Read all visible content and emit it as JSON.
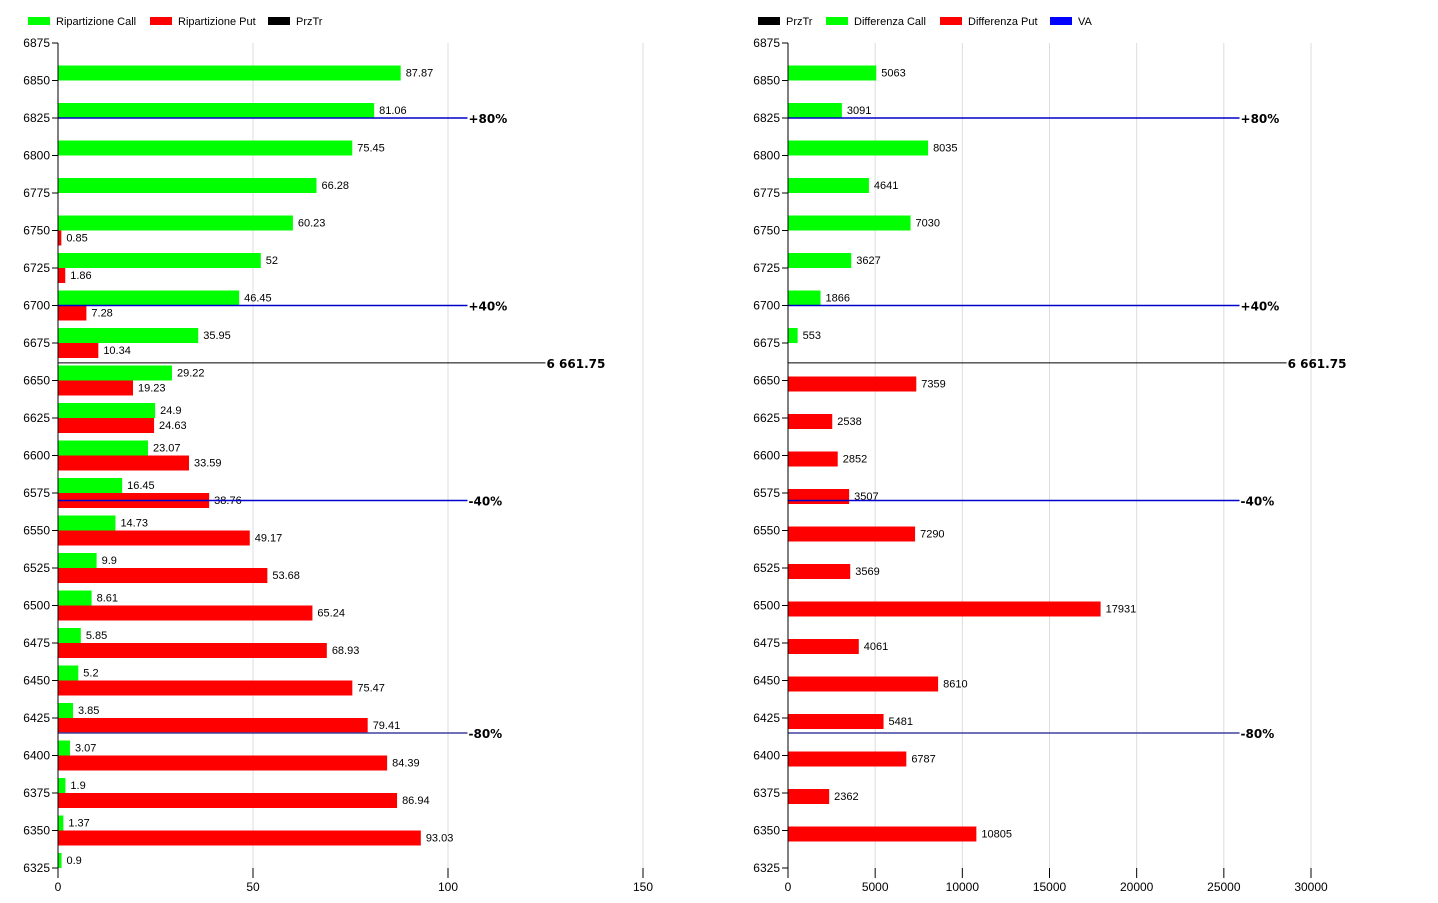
{
  "chart_data": [
    {
      "type": "bar",
      "orientation": "horizontal",
      "title": "",
      "xlabel": "",
      "ylabel": "",
      "xlim": [
        0,
        150
      ],
      "x_ticks": [
        "0",
        "50",
        "100",
        "150"
      ],
      "x_tick_values": [
        0,
        50,
        100,
        150
      ],
      "ylim": [
        6325,
        6875
      ],
      "grid": true,
      "legend_position": "top-left",
      "legend": [
        {
          "label": "Ripartizione Call",
          "color": "#00ff00"
        },
        {
          "label": "Ripartizione Put",
          "color": "#ff0000"
        },
        {
          "label": "PrzTr",
          "color": "#000000"
        }
      ],
      "categories": [
        6875,
        6850,
        6825,
        6800,
        6775,
        6750,
        6725,
        6700,
        6675,
        6650,
        6625,
        6600,
        6575,
        6550,
        6525,
        6500,
        6475,
        6450,
        6425,
        6400,
        6375,
        6350,
        6325
      ],
      "series": [
        {
          "name": "Ripartizione Call",
          "color": "#00ff00",
          "values": [
            null,
            87.87,
            81.06,
            75.45,
            66.28,
            60.23,
            52,
            46.45,
            35.95,
            29.22,
            24.9,
            23.07,
            16.45,
            14.73,
            9.9,
            8.61,
            5.85,
            5.2,
            3.85,
            3.07,
            1.9,
            1.37,
            0.9
          ],
          "labels": [
            "",
            "87.87",
            "81.06",
            "75.45",
            "66.28",
            "60.23",
            "52",
            "46.45",
            "35.95",
            "29.22",
            "24.9",
            "23.07",
            "16.45",
            "14.73",
            "9.9",
            "8.61",
            "5.85",
            "5.2",
            "3.85",
            "3.07",
            "1.9",
            "1.37",
            "0.9"
          ]
        },
        {
          "name": "Ripartizione Put",
          "color": "#ff0000",
          "values": [
            null,
            null,
            null,
            null,
            null,
            0.85,
            1.86,
            7.28,
            10.34,
            19.23,
            24.63,
            33.59,
            38.76,
            49.17,
            53.68,
            65.24,
            68.93,
            75.47,
            79.41,
            84.39,
            86.94,
            93.03,
            null
          ],
          "labels": [
            "",
            "",
            "",
            "",
            "",
            "0.85",
            "1.86",
            "7.28",
            "10.34",
            "19.23",
            "24.63",
            "33.59",
            "38.76",
            "49.17",
            "53.68",
            "65.24",
            "68.93",
            "75.47",
            "79.41",
            "84.39",
            "86.94",
            "93.03",
            ""
          ]
        }
      ],
      "reference_lines": [
        {
          "name": "PrzTr",
          "level": 6661.75,
          "label": "6 661.75",
          "color": "#000000",
          "extent": 125
        },
        {
          "name": "VA",
          "level": 6825,
          "label": "+80%",
          "color": "#0000cc",
          "extent": 105
        },
        {
          "name": "VA",
          "level": 6700,
          "label": "+40%",
          "color": "#0000cc",
          "extent": 105
        },
        {
          "name": "VA",
          "level": 6570,
          "label": "-40%",
          "color": "#0000cc",
          "extent": 105
        },
        {
          "name": "VA",
          "level": 6415,
          "label": "-80%",
          "color": "#4040a0",
          "extent": 105
        }
      ]
    },
    {
      "type": "bar",
      "orientation": "horizontal",
      "title": "",
      "xlabel": "",
      "ylabel": "",
      "xlim": [
        0,
        30000
      ],
      "x_ticks": [
        "0",
        "5000",
        "10000",
        "15000",
        "20000",
        "25000",
        "30000"
      ],
      "x_tick_values": [
        0,
        5000,
        10000,
        15000,
        20000,
        25000,
        30000
      ],
      "ylim": [
        6325,
        6875
      ],
      "grid": true,
      "legend_position": "top-left",
      "legend": [
        {
          "label": "PrzTr",
          "color": "#000000"
        },
        {
          "label": "Differenza Call",
          "color": "#00ff00"
        },
        {
          "label": "Differenza Put",
          "color": "#ff0000"
        },
        {
          "label": "VA",
          "color": "#0000ff"
        }
      ],
      "categories": [
        6875,
        6850,
        6825,
        6800,
        6775,
        6750,
        6725,
        6700,
        6675,
        6650,
        6625,
        6600,
        6575,
        6550,
        6525,
        6500,
        6475,
        6450,
        6425,
        6400,
        6375,
        6350,
        6325
      ],
      "series": [
        {
          "name": "Differenza Call",
          "color": "#00ff00",
          "values": [
            null,
            5063,
            3091,
            8035,
            4641,
            7030,
            3627,
            1866,
            553,
            null,
            null,
            null,
            null,
            null,
            null,
            null,
            null,
            null,
            null,
            null,
            null,
            null,
            null
          ],
          "labels": [
            "",
            "5063",
            "3091",
            "8035",
            "4641",
            "7030",
            "3627",
            "1866",
            "553",
            "",
            "",
            "",
            "",
            "",
            "",
            "",
            "",
            "",
            "",
            "",
            "",
            "",
            ""
          ]
        },
        {
          "name": "Differenza Put",
          "color": "#ff0000",
          "values": [
            null,
            null,
            null,
            null,
            null,
            null,
            null,
            null,
            null,
            7359,
            2538,
            2852,
            3507,
            7290,
            3569,
            17931,
            4061,
            8610,
            5481,
            6787,
            2362,
            10805,
            null
          ],
          "labels": [
            "",
            "",
            "",
            "",
            "",
            "",
            "",
            "",
            "",
            "7359",
            "2538",
            "2852",
            "3507",
            "7290",
            "3569",
            "17931",
            "4061",
            "8610",
            "5481",
            "6787",
            "2362",
            "10805",
            ""
          ]
        }
      ],
      "reference_lines": [
        {
          "name": "PrzTr",
          "level": 6661.75,
          "label": "6 661.75",
          "color": "#000000",
          "extent": 28600
        },
        {
          "name": "VA",
          "level": 6825,
          "label": "+80%",
          "color": "#0000cc",
          "extent": 25900
        },
        {
          "name": "VA",
          "level": 6700,
          "label": "+40%",
          "color": "#0000cc",
          "extent": 25900
        },
        {
          "name": "VA",
          "level": 6570,
          "label": "-40%",
          "color": "#0000cc",
          "extent": 25900
        },
        {
          "name": "VA",
          "level": 6415,
          "label": "-80%",
          "color": "#4040a0",
          "extent": 25900
        }
      ]
    }
  ]
}
